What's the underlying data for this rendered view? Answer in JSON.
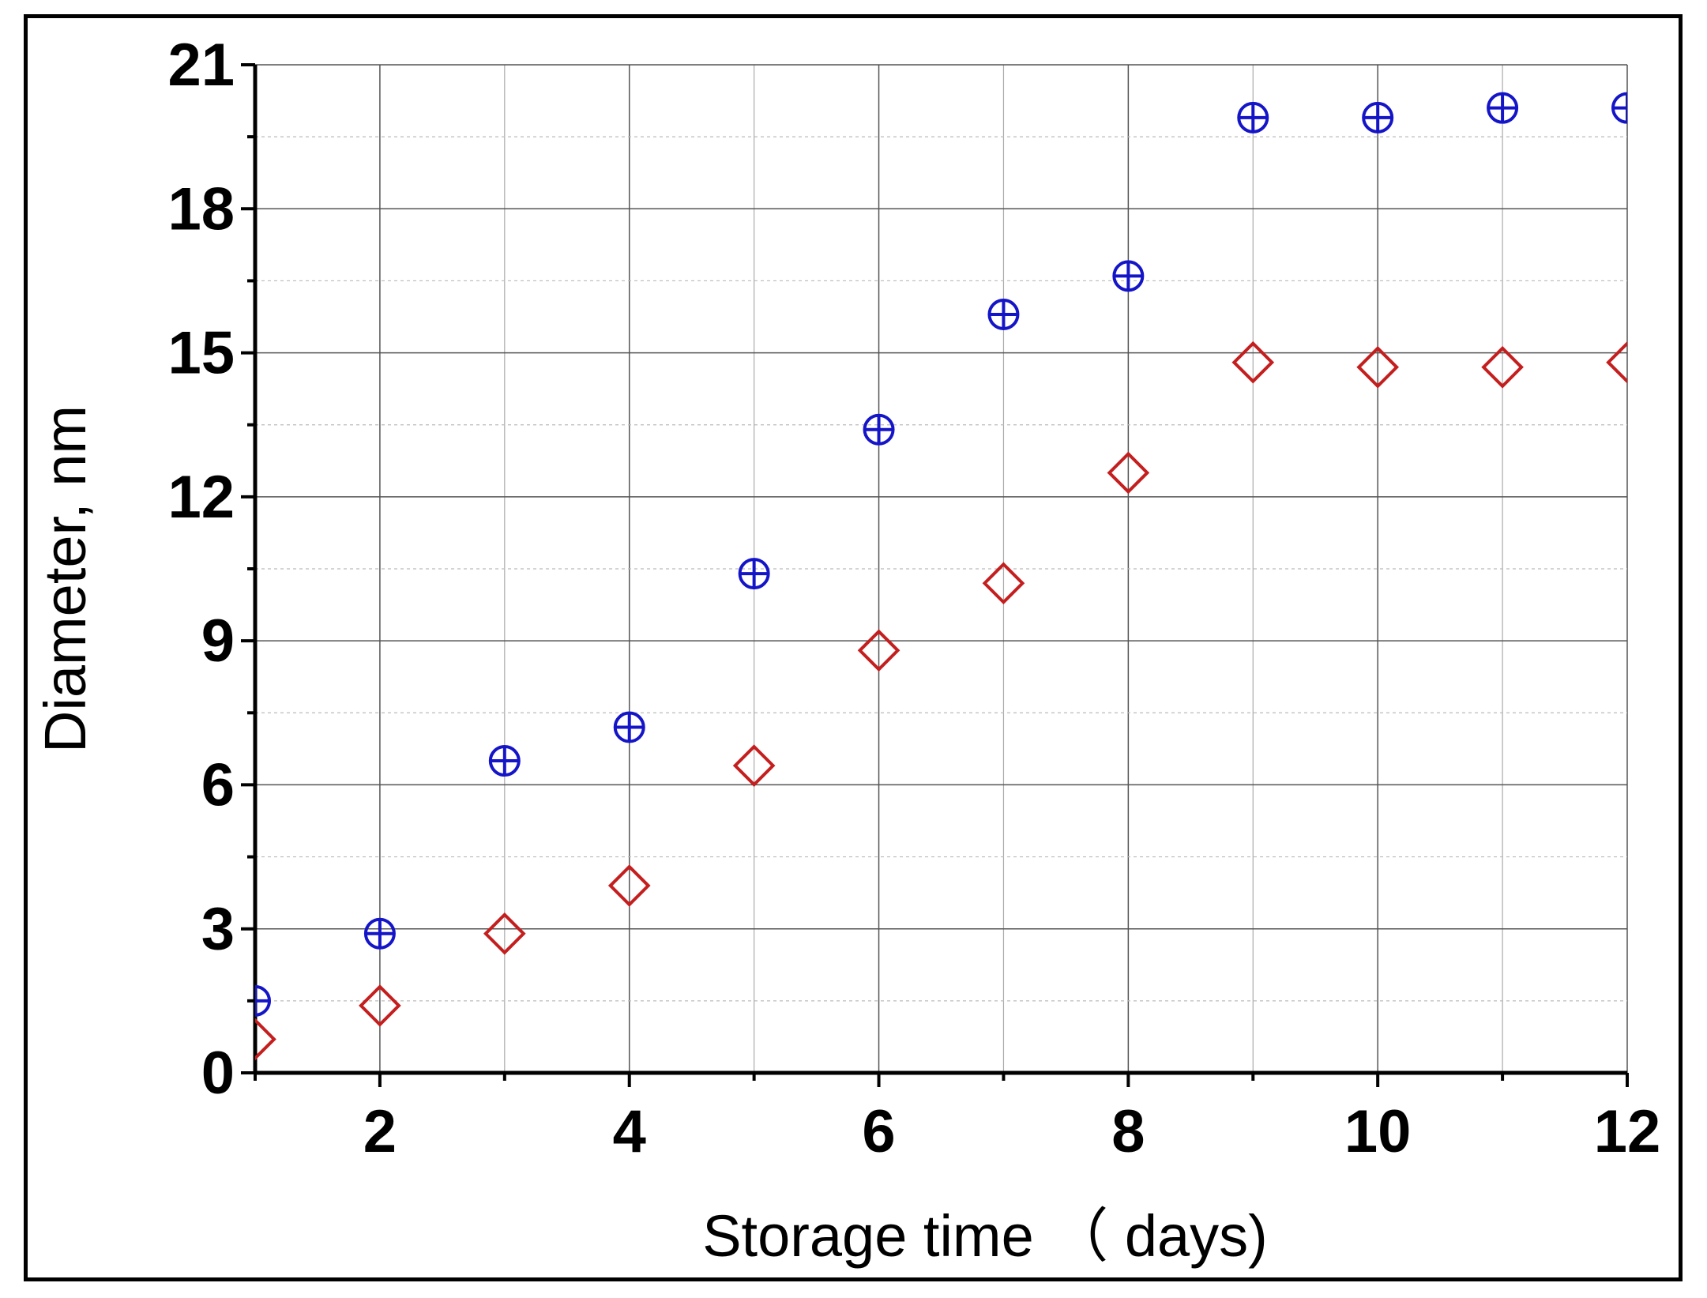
{
  "chart_data": {
    "type": "scatter",
    "title": "",
    "xlabel": "Storage time （ days)",
    "ylabel": "Diameter, nm",
    "xlim": [
      1,
      12
    ],
    "ylim": [
      0,
      21
    ],
    "x_ticks": [
      2,
      4,
      6,
      8,
      10,
      12
    ],
    "y_ticks": [
      0,
      3,
      6,
      9,
      12,
      15,
      18,
      21
    ],
    "x_tick_labels": [
      "2",
      "4",
      "6",
      "8",
      "10",
      "12"
    ],
    "y_tick_labels": [
      "0",
      "3",
      "6",
      "9",
      "12",
      "15",
      "18",
      "21"
    ],
    "grid": true,
    "legend": "none",
    "series": [
      {
        "marker": "circle-plus",
        "color": "#1515c8",
        "x": [
          1,
          2,
          3,
          4,
          5,
          6,
          7,
          8,
          9,
          10,
          11,
          12
        ],
        "values": [
          1.5,
          2.9,
          6.5,
          7.2,
          10.4,
          13.4,
          15.8,
          16.6,
          19.9,
          19.9,
          20.1,
          20.1
        ]
      },
      {
        "marker": "diamond",
        "color": "#c41e1e",
        "x": [
          1,
          2,
          3,
          4,
          5,
          6,
          7,
          8,
          9,
          10,
          11,
          12
        ],
        "values": [
          0.7,
          1.4,
          2.9,
          3.9,
          6.4,
          8.8,
          10.2,
          12.5,
          14.8,
          14.7,
          14.7,
          14.8
        ]
      }
    ]
  }
}
